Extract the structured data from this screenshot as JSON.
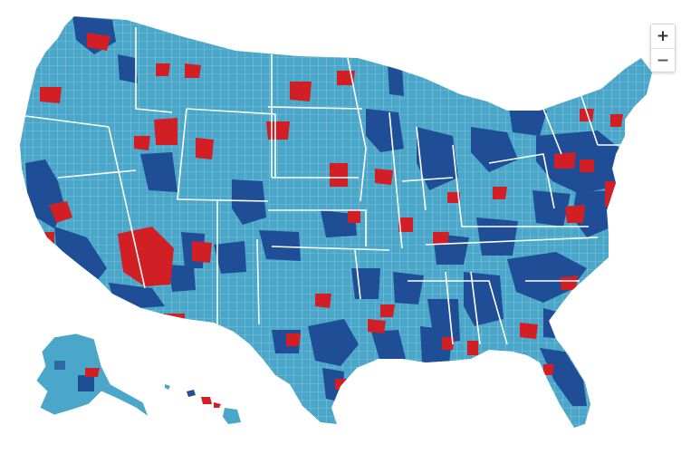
{
  "map": {
    "colors": {
      "base": "#4aa7c9",
      "dark": "#1f4e96",
      "red": "#d21f26",
      "borders": "#ffffff",
      "background": "#ffffff"
    },
    "regions": [
      "contiguous-us",
      "alaska",
      "hawaii"
    ]
  },
  "controls": {
    "zoom_in_label": "+",
    "zoom_out_label": "−"
  }
}
